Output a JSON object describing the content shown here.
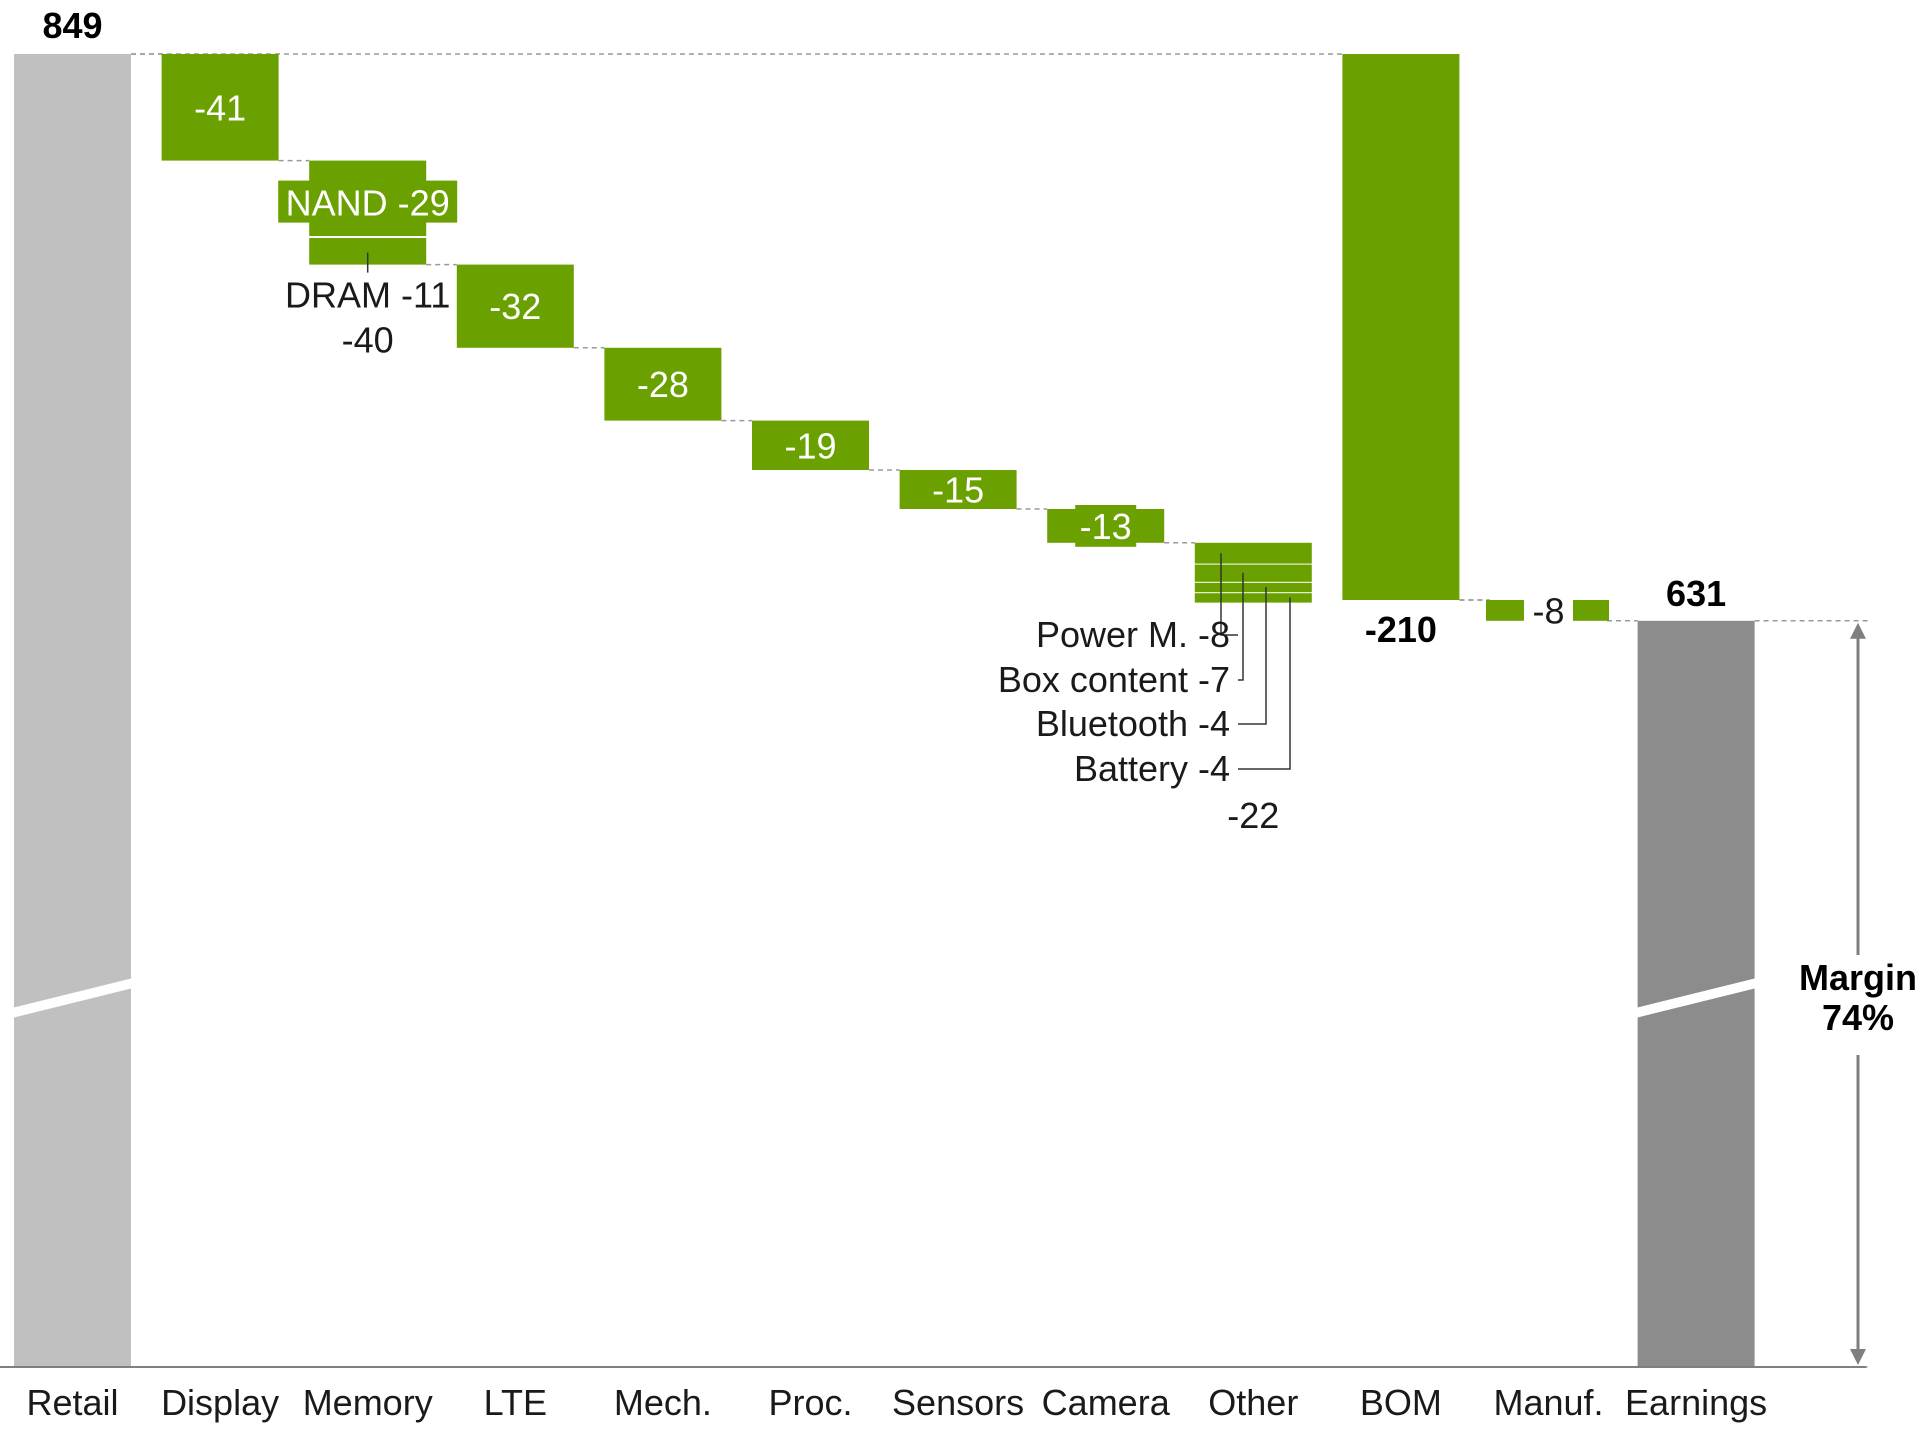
{
  "chart_data": {
    "type": "waterfall",
    "categories": [
      "Retail",
      "Display",
      "Memory",
      "LTE",
      "Mech.",
      "Proc.",
      "Sensors",
      "Camera",
      "Other",
      "BOM",
      "Manuf.",
      "Earnings"
    ],
    "start": {
      "category": "Retail",
      "value": 849,
      "label": "849"
    },
    "steps": [
      {
        "category": "Display",
        "value": -41,
        "label": "-41"
      },
      {
        "category": "Memory",
        "value": -40,
        "label": "-40",
        "parts": [
          {
            "name": "NAND",
            "value": -29,
            "label": "NAND -29"
          },
          {
            "name": "DRAM",
            "value": -11,
            "label": "DRAM -11"
          }
        ]
      },
      {
        "category": "LTE",
        "value": -32,
        "label": "-32"
      },
      {
        "category": "Mech.",
        "value": -28,
        "label": "-28"
      },
      {
        "category": "Proc.",
        "value": -19,
        "label": "-19"
      },
      {
        "category": "Sensors",
        "value": -15,
        "label": "-15"
      },
      {
        "category": "Camera",
        "value": -13,
        "label": "-13"
      },
      {
        "category": "Other",
        "value": -22,
        "label": "-22",
        "parts": [
          {
            "name": "Power M.",
            "value": -8,
            "label": "Power M. -8"
          },
          {
            "name": "Box content",
            "value": -7,
            "label": "Box content -7"
          },
          {
            "name": "Bluetooth",
            "value": -4,
            "label": "Bluetooth -4"
          },
          {
            "name": "Battery",
            "value": -4,
            "label": "Battery -4"
          }
        ]
      },
      {
        "category": "BOM",
        "value": -210,
        "label": "-210",
        "from": 849
      },
      {
        "category": "Manuf.",
        "value": -8,
        "label": "-8"
      }
    ],
    "end": {
      "category": "Earnings",
      "value": 631,
      "label": "631"
    },
    "margin": {
      "title": "Margin",
      "value": "74%"
    },
    "axis_break": true,
    "colors": {
      "total_start": "#c0c0c0",
      "total_end": "#8c8c8c",
      "step": "#6aa100",
      "connector": "#9a9a9a",
      "axis": "#7f7f7f"
    }
  }
}
